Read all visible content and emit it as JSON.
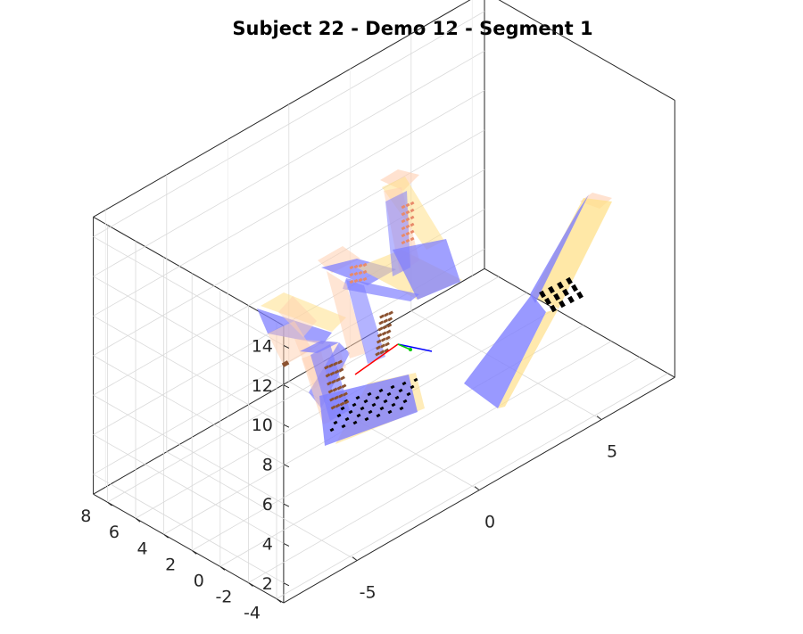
{
  "chart_data": {
    "type": "3d-scatter",
    "title": "Subject 22 - Demo 12 - Segment 1",
    "view": "3d-isometric",
    "grid": true,
    "box": true,
    "axes": {
      "x": {
        "ticks": [
          -5,
          0,
          5
        ],
        "tick_labels": [
          "-5",
          "0",
          "5"
        ],
        "range": [
          -8,
          8
        ]
      },
      "y": {
        "ticks": [
          -4,
          -2,
          0,
          2,
          4,
          6,
          8
        ],
        "tick_labels": [
          "-4",
          "-2",
          "0",
          "2",
          "4",
          "6",
          "8"
        ],
        "range": [
          -4.5,
          9
        ]
      },
      "z": {
        "ticks": [
          2,
          4,
          6,
          8,
          10,
          12,
          14
        ],
        "tick_labels": [
          "2",
          "4",
          "6",
          "8",
          "10",
          "12",
          "14"
        ],
        "range": [
          1,
          15
        ]
      }
    },
    "colors": {
      "hand_pose": "#8080ff",
      "hand_pose_alt": "#ffe08a",
      "hand_pose_peach": "#ffcfb0",
      "marker_black": "#000000",
      "marker_brown": "#8b5230",
      "marker_orange": "#e88a6a",
      "axis_red": "#ff0000",
      "axis_green": "#00cc00",
      "axis_blue": "#0000ff"
    }
  }
}
